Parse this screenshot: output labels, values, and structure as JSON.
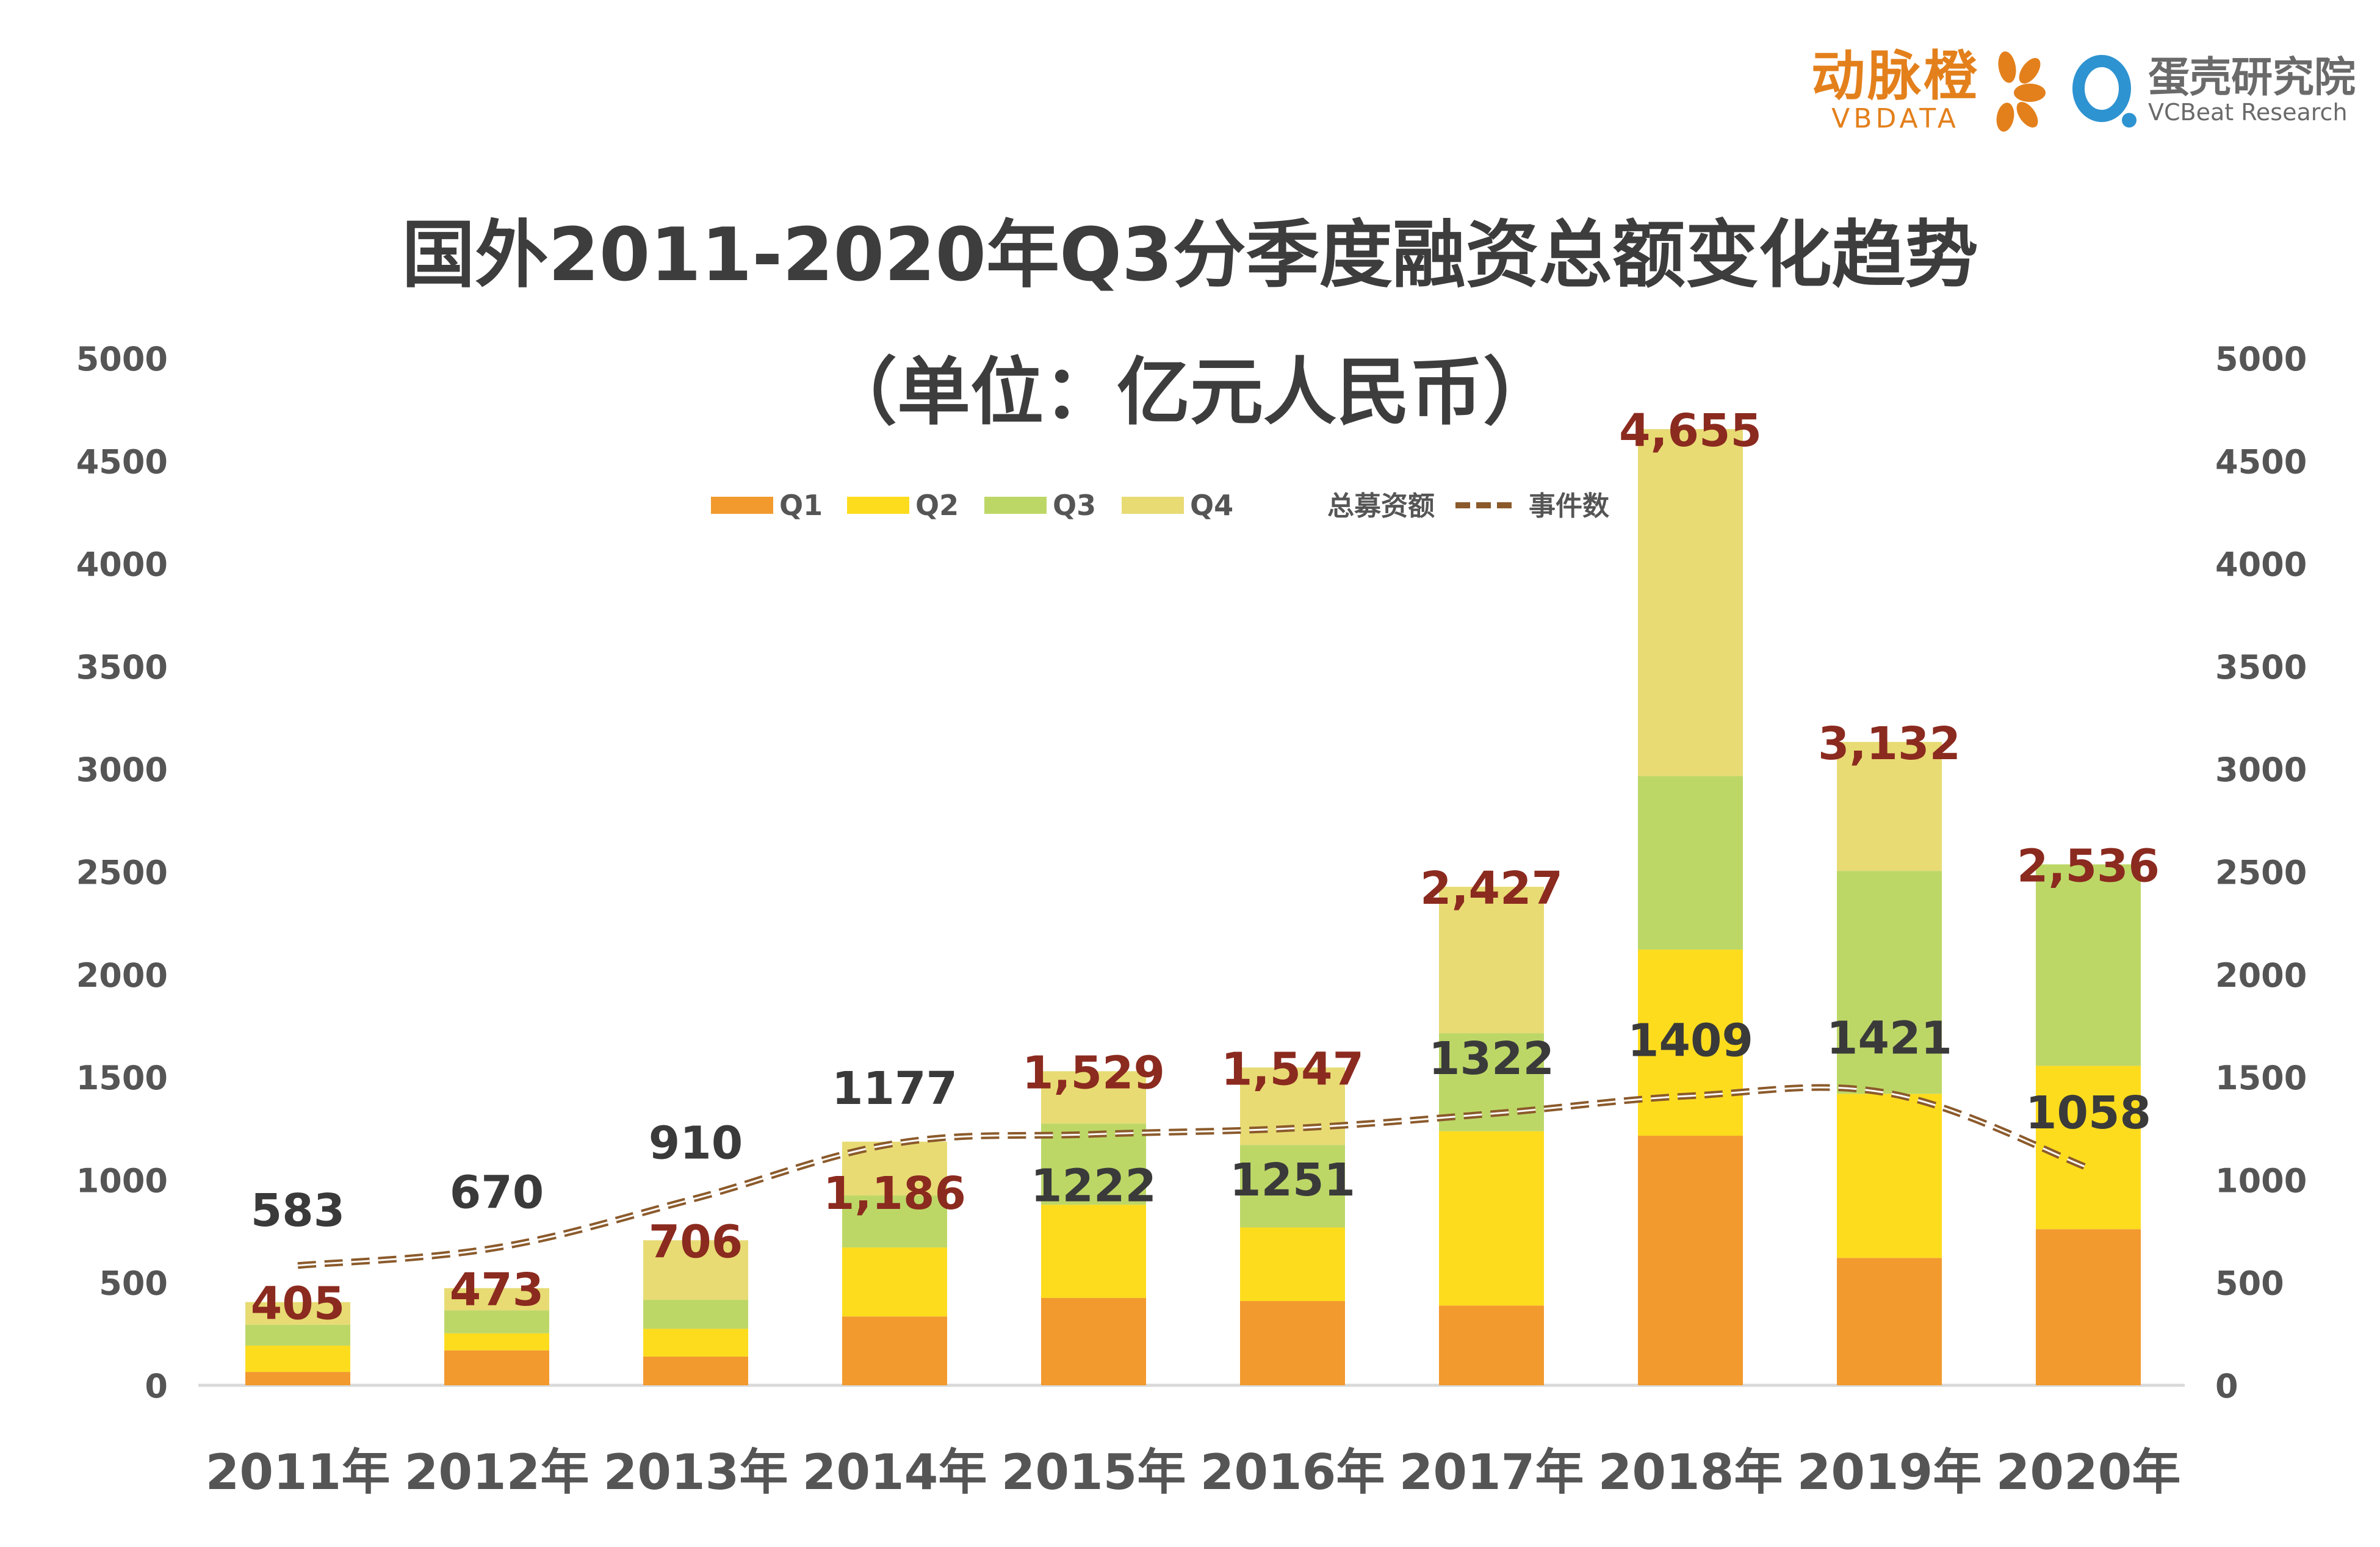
{
  "logos": {
    "vbdata": {
      "cn": "动脉橙",
      "en": "VBDATA",
      "color": "#E3801C"
    },
    "vcbeat": {
      "cn": "蛋壳研究院",
      "en": "VCBeat Research",
      "color": "#2E93D1"
    }
  },
  "chart_data": {
    "type": "bar",
    "stacked": true,
    "title": "国外2011-2020年Q3分季度融资总额变化趋势",
    "subtitle": "（单位：亿元人民币）",
    "categories": [
      "2011年",
      "2012年",
      "2013年",
      "2014年",
      "2015年",
      "2016年",
      "2017年",
      "2018年",
      "2019年",
      "2020年"
    ],
    "series": [
      {
        "name": "Q1",
        "color": "#F29A2E",
        "values": [
          65,
          170,
          140,
          335,
          425,
          410,
          388,
          1215,
          620,
          760
        ]
      },
      {
        "name": "Q2",
        "color": "#FDDC1E",
        "values": [
          128,
          83,
          135,
          336,
          454,
          358,
          849,
          906,
          799,
          795
        ]
      },
      {
        "name": "Q3",
        "color": "#BDD767",
        "values": [
          102,
          112,
          141,
          253,
          395,
          402,
          477,
          845,
          1085,
          981
        ]
      },
      {
        "name": "Q4",
        "color": "#E8DB74",
        "values": [
          110,
          108,
          290,
          262,
          255,
          377,
          713,
          1689,
          628,
          0
        ]
      }
    ],
    "totals_series": {
      "name": "总募资额",
      "values": [
        "405",
        "473",
        "706",
        "1,186",
        "1,529",
        "1,547",
        "2,427",
        "4,655",
        "3,132",
        "2,536"
      ],
      "color": "#8B2A1F"
    },
    "line_series": {
      "name": "事件数",
      "axis": "right",
      "values": [
        583,
        670,
        910,
        1177,
        1222,
        1251,
        1322,
        1409,
        1421,
        1058
      ],
      "color": "#8B5A2B",
      "style": "dashed"
    },
    "y_left": {
      "ylim": [
        0,
        5000
      ],
      "ticks": [
        "0",
        "500",
        "1000",
        "1500",
        "2000",
        "2500",
        "3000",
        "3500",
        "4000",
        "4500",
        "5000"
      ]
    },
    "y_right": {
      "ylim": [
        0,
        5000
      ],
      "ticks": [
        "0",
        "500",
        "1000",
        "1500",
        "2000",
        "2500",
        "3000",
        "3500",
        "4000",
        "4500",
        "5000"
      ]
    },
    "grid": false,
    "legend": "top-center"
  }
}
